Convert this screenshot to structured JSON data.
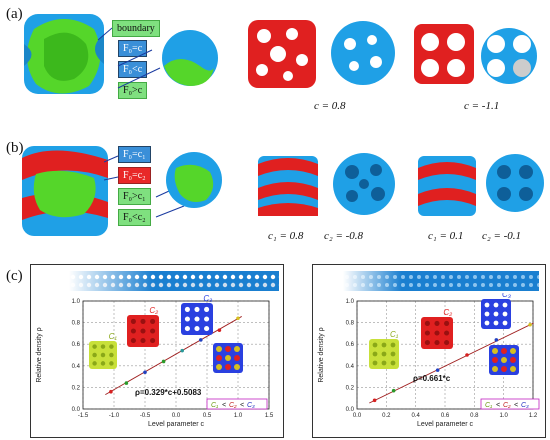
{
  "panel_a": {
    "label": "(a)",
    "boxes": {
      "boundary": "boundary",
      "eq": "F₀=c",
      "lt": "F₀<c",
      "gt": "F₀>c"
    },
    "captions": {
      "left": "c = 0.8",
      "right": "c = -1.1"
    }
  },
  "panel_b": {
    "label": "(b)",
    "boxes": {
      "eq1": "F₀=c₁",
      "eq2": "F₀=c₂",
      "gt1": "F₀>c₁",
      "lt2": "F₀<c₂"
    },
    "captions": {
      "c1_left": "c₁ = 0.8",
      "c2_left": "c₂ = -0.8",
      "c1_right": "c₁ = 0.1",
      "c2_right": "c₂ = -0.1"
    }
  },
  "panel_c": {
    "label": "(c)"
  },
  "chart_data": [
    {
      "type": "scatter",
      "xlabel": "Level parameter c",
      "ylabel": "Relative density ρ",
      "xlim": [
        -1.5,
        1.5
      ],
      "ylim": [
        0,
        1
      ],
      "x_ticks": [
        "-1.5",
        "-1.0",
        "-0.5",
        "0.0",
        "0.5",
        "1.0",
        "1.5"
      ],
      "y_ticks": [
        "0.0",
        "0.2",
        "0.4",
        "0.6",
        "0.8",
        "1.0"
      ],
      "grid": true,
      "equation": "ρ=0.329*c+0.5083",
      "fit": {
        "slope": 0.329,
        "intercept": 0.5083
      },
      "inset_labels": [
        "C₁",
        "C₂",
        "C₃"
      ],
      "ordering": [
        "C₁",
        "<",
        "C₂",
        "<",
        "C₃"
      ],
      "points": [
        {
          "x": -1.05,
          "y": 0.16,
          "color": "#d62020"
        },
        {
          "x": -0.8,
          "y": 0.24,
          "color": "#2a9a2a"
        },
        {
          "x": -0.5,
          "y": 0.34,
          "color": "#2040c0"
        },
        {
          "x": -0.2,
          "y": 0.44,
          "color": "#2a9a2a"
        },
        {
          "x": 0.1,
          "y": 0.54,
          "color": "#2a9a9a"
        },
        {
          "x": 0.4,
          "y": 0.64,
          "color": "#2040c0"
        },
        {
          "x": 0.7,
          "y": 0.73,
          "color": "#d62020"
        },
        {
          "x": 1.0,
          "y": 0.84,
          "color": "#d6c020"
        }
      ]
    },
    {
      "type": "scatter",
      "xlabel": "Level parameter c",
      "ylabel": "Relative density ρ",
      "xlim": [
        0,
        1.2
      ],
      "ylim": [
        0,
        1
      ],
      "x_ticks": [
        "0.0",
        "0.2",
        "0.4",
        "0.6",
        "0.8",
        "1.0",
        "1.2"
      ],
      "y_ticks": [
        "0.0",
        "0.2",
        "0.4",
        "0.6",
        "0.8",
        "1.0"
      ],
      "grid": true,
      "equation": "ρ=0.661*c",
      "fit": {
        "slope": 0.661,
        "intercept": 0
      },
      "inset_labels": [
        "C₁",
        "C₂",
        "C₃"
      ],
      "ordering": [
        "C₁",
        "<",
        "C₂",
        "<",
        "C₃"
      ],
      "points": [
        {
          "x": 0.12,
          "y": 0.08,
          "color": "#d62020"
        },
        {
          "x": 0.25,
          "y": 0.17,
          "color": "#2a9a2a"
        },
        {
          "x": 0.55,
          "y": 0.36,
          "color": "#2040c0"
        },
        {
          "x": 0.75,
          "y": 0.5,
          "color": "#d62020"
        },
        {
          "x": 0.95,
          "y": 0.64,
          "color": "#2040c0"
        },
        {
          "x": 1.18,
          "y": 0.78,
          "color": "#d6c020"
        }
      ]
    }
  ]
}
